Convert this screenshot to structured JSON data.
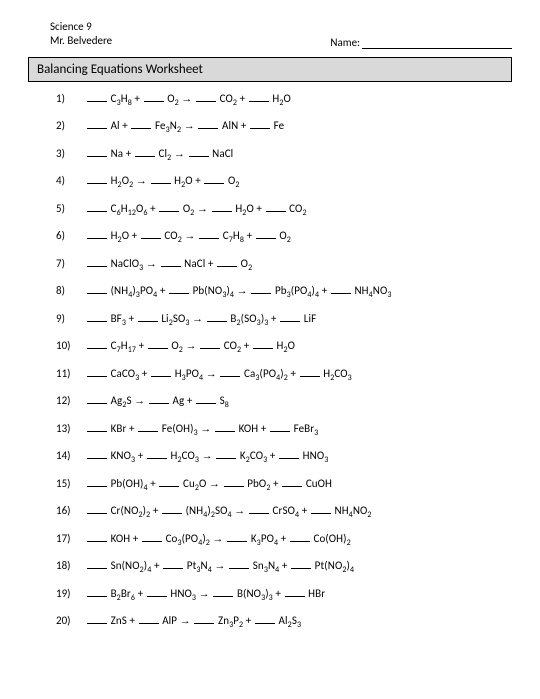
{
  "header": {
    "course": "Science 9",
    "teacher": "Mr. Belvedere",
    "name_label": "Name:"
  },
  "title": "Balancing Equations Worksheet",
  "arrow": "→",
  "equations": [
    {
      "n": "1)",
      "terms": [
        [
          "C",
          "3",
          "H",
          "8"
        ],
        [
          "O",
          "2"
        ],
        "→",
        [
          "CO",
          "2"
        ],
        [
          "H",
          "2",
          "O"
        ]
      ]
    },
    {
      "n": "2)",
      "terms": [
        [
          "Al"
        ],
        [
          "Fe",
          "3",
          "N",
          "2"
        ],
        "→",
        [
          "AlN"
        ],
        [
          "Fe"
        ]
      ]
    },
    {
      "n": "3)",
      "terms": [
        [
          "Na"
        ],
        [
          "Cl",
          "2"
        ],
        "→",
        [
          "NaCl"
        ]
      ]
    },
    {
      "n": "4)",
      "terms": [
        [
          "H",
          "2",
          "O",
          "2"
        ],
        "→",
        [
          "H",
          "2",
          "O"
        ],
        [
          "O",
          "2"
        ]
      ]
    },
    {
      "n": "5)",
      "terms": [
        [
          "C",
          "6",
          "H",
          "12",
          "O",
          "6"
        ],
        [
          "O",
          "2"
        ],
        "→",
        [
          "H",
          "2",
          "O"
        ],
        [
          "CO",
          "2"
        ]
      ]
    },
    {
      "n": "6)",
      "terms": [
        [
          "H",
          "2",
          "O"
        ],
        [
          "CO",
          "2"
        ],
        "→",
        [
          "C",
          "7",
          "H",
          "8"
        ],
        [
          "O",
          "2"
        ]
      ]
    },
    {
      "n": "7)",
      "terms": [
        [
          "NaClO",
          "3"
        ],
        "→",
        [
          "NaCl"
        ],
        [
          "O",
          "2"
        ]
      ]
    },
    {
      "n": "8)",
      "terms": [
        [
          "(NH",
          "4",
          ")",
          "3",
          "PO",
          "4"
        ],
        [
          "Pb(NO",
          "3",
          ")",
          "4"
        ],
        "→",
        [
          "Pb",
          "3",
          "(PO",
          "4",
          ")",
          "4"
        ],
        [
          "NH",
          "4",
          "NO",
          "3"
        ]
      ]
    },
    {
      "n": "9)",
      "terms": [
        [
          "BF",
          "3"
        ],
        [
          "Li",
          "2",
          "SO",
          "3"
        ],
        "→",
        [
          "B",
          "2",
          "(SO",
          "3",
          ")",
          "3"
        ],
        [
          "LiF"
        ]
      ]
    },
    {
      "n": "10)",
      "terms": [
        [
          "C",
          "7",
          "H",
          "17"
        ],
        [
          "O",
          "2"
        ],
        "→",
        [
          "CO",
          "2"
        ],
        [
          "H",
          "2",
          "O"
        ]
      ]
    },
    {
      "n": "11)",
      "terms": [
        [
          "CaCO",
          "3"
        ],
        [
          "H",
          "3",
          "PO",
          "4"
        ],
        "→",
        [
          "Ca",
          "3",
          "(PO",
          "4",
          ")",
          "2"
        ],
        [
          "H",
          "2",
          "CO",
          "3"
        ]
      ]
    },
    {
      "n": "12)",
      "terms": [
        [
          "Ag",
          "2",
          "S"
        ],
        "→",
        [
          "Ag"
        ],
        [
          "S",
          "8"
        ]
      ]
    },
    {
      "n": "13)",
      "terms": [
        [
          "KBr"
        ],
        [
          "Fe(OH)",
          "3"
        ],
        "→",
        [
          "KOH"
        ],
        [
          "FeBr",
          "3"
        ]
      ]
    },
    {
      "n": "14)",
      "terms": [
        [
          "KNO",
          "3"
        ],
        [
          "H",
          "2",
          "CO",
          "3"
        ],
        "→",
        [
          "K",
          "2",
          "CO",
          "3"
        ],
        [
          "HNO",
          "3"
        ]
      ]
    },
    {
      "n": "15)",
      "terms": [
        [
          "Pb(OH)",
          "4"
        ],
        [
          "Cu",
          "2",
          "O"
        ],
        "→",
        [
          "PbO",
          "2"
        ],
        [
          "CuOH"
        ]
      ]
    },
    {
      "n": "16)",
      "terms": [
        [
          "Cr(NO",
          "2",
          ")",
          "2"
        ],
        [
          "(NH",
          "4",
          ")",
          "2",
          "SO",
          "4"
        ],
        "→",
        [
          "CrSO",
          "4"
        ],
        [
          "NH",
          "4",
          "NO",
          "2"
        ]
      ]
    },
    {
      "n": "17)",
      "terms": [
        [
          "KOH"
        ],
        [
          "Co",
          "3",
          "(PO",
          "4",
          ")",
          "2"
        ],
        "→",
        [
          "K",
          "3",
          "PO",
          "4"
        ],
        [
          "Co(OH)",
          "2"
        ]
      ]
    },
    {
      "n": "18)",
      "terms": [
        [
          "Sn(NO",
          "2",
          ")",
          "4"
        ],
        [
          "Pt",
          "3",
          "N",
          "4"
        ],
        "→",
        [
          "Sn",
          "3",
          "N",
          "4"
        ],
        [
          "Pt(NO",
          "2",
          ")",
          "4"
        ]
      ]
    },
    {
      "n": "19)",
      "terms": [
        [
          "B",
          "2",
          "Br",
          "6"
        ],
        [
          "HNO",
          "3"
        ],
        "→",
        [
          "B(NO",
          "3",
          ")",
          "3"
        ],
        [
          "HBr"
        ]
      ]
    },
    {
      "n": "20)",
      "terms": [
        [
          "ZnS"
        ],
        [
          "AlP"
        ],
        "→",
        [
          "Zn",
          "3",
          "P",
          "2"
        ],
        [
          "Al",
          "2",
          "S",
          "3"
        ]
      ]
    }
  ]
}
